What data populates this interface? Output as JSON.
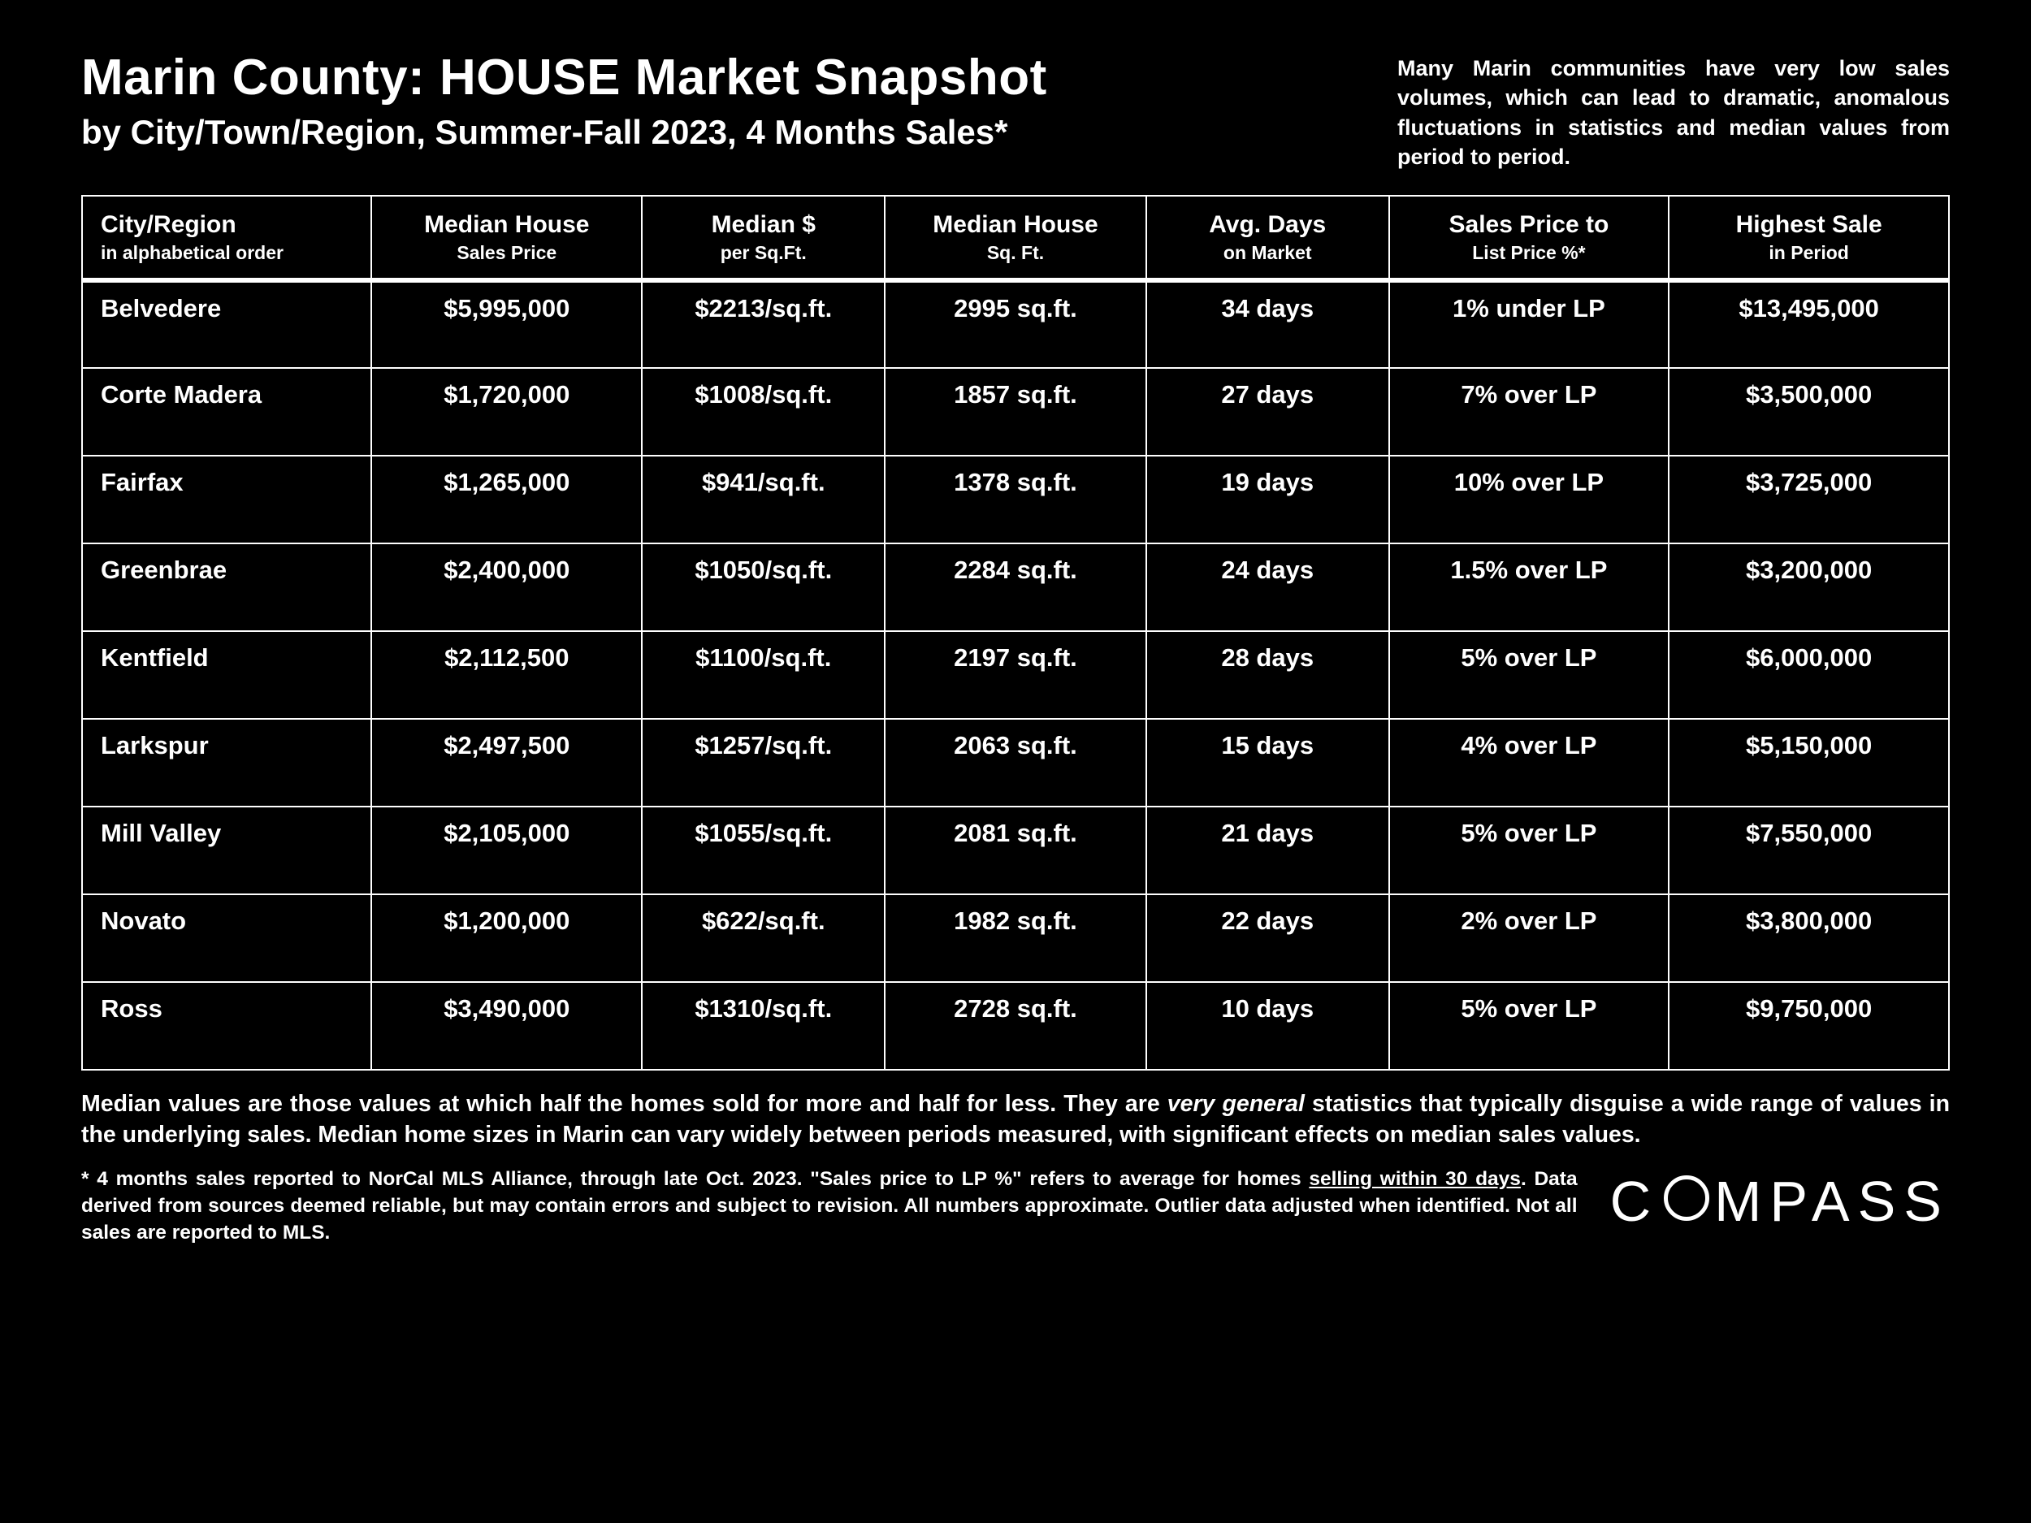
{
  "header": {
    "title": "Marin County: HOUSE Market Snapshot",
    "subtitle": "by City/Town/Region, Summer-Fall 2023, 4 Months Sales*",
    "note": "Many Marin communities have very low sales volumes, which can lead to dramatic, anomalous fluctuations in statistics and median values from period to period."
  },
  "columns": [
    {
      "line1": "City/Region",
      "line2": "in alphabetical order"
    },
    {
      "line1": "Median House",
      "line2": "Sales Price"
    },
    {
      "line1": "Median $",
      "line2": "per Sq.Ft."
    },
    {
      "line1": "Median House",
      "line2": "Sq. Ft."
    },
    {
      "line1": "Avg. Days",
      "line2": "on Market"
    },
    {
      "line1": "Sales Price to",
      "line2": "List Price %*"
    },
    {
      "line1": "Highest Sale",
      "line2": "in Period"
    }
  ],
  "rows": [
    {
      "city": "Belvedere",
      "price": "$5,995,000",
      "psf": "$2213/sq.ft.",
      "sqft": "2995 sq.ft.",
      "days": "34 days",
      "lp": "1% under LP",
      "high": "$13,495,000"
    },
    {
      "city": "Corte Madera",
      "price": "$1,720,000",
      "psf": "$1008/sq.ft.",
      "sqft": "1857 sq.ft.",
      "days": "27 days",
      "lp": "7% over LP",
      "high": "$3,500,000"
    },
    {
      "city": "Fairfax",
      "price": "$1,265,000",
      "psf": "$941/sq.ft.",
      "sqft": "1378 sq.ft.",
      "days": "19 days",
      "lp": "10% over LP",
      "high": "$3,725,000"
    },
    {
      "city": "Greenbrae",
      "price": "$2,400,000",
      "psf": "$1050/sq.ft.",
      "sqft": "2284 sq.ft.",
      "days": "24 days",
      "lp": "1.5% over LP",
      "high": "$3,200,000"
    },
    {
      "city": "Kentfield",
      "price": "$2,112,500",
      "psf": "$1100/sq.ft.",
      "sqft": "2197 sq.ft.",
      "days": "28 days",
      "lp": "5% over LP",
      "high": "$6,000,000"
    },
    {
      "city": "Larkspur",
      "price": "$2,497,500",
      "psf": "$1257/sq.ft.",
      "sqft": "2063 sq.ft.",
      "days": "15 days",
      "lp": "4% over LP",
      "high": "$5,150,000"
    },
    {
      "city": "Mill Valley",
      "price": "$2,105,000",
      "psf": "$1055/sq.ft.",
      "sqft": "2081 sq.ft.",
      "days": "21 days",
      "lp": "5% over LP",
      "high": "$7,550,000"
    },
    {
      "city": "Novato",
      "price": "$1,200,000",
      "psf": "$622/sq.ft.",
      "sqft": "1982 sq.ft.",
      "days": "22 days",
      "lp": "2% over LP",
      "high": "$3,800,000"
    },
    {
      "city": "Ross",
      "price": "$3,490,000",
      "psf": "$1310/sq.ft.",
      "sqft": "2728 sq.ft.",
      "days": "10 days",
      "lp": "5% over LP",
      "high": "$9,750,000"
    }
  ],
  "footnote1": {
    "pre": "Median values are those values at which half the homes sold for more and half for less. They are ",
    "emph": "very general",
    "post": " statistics that typically disguise a wide range of values in the underlying sales. Median home sizes in Marin can vary widely between periods measured, with significant effects on median sales values."
  },
  "footnote2": {
    "pre": "* 4 months sales reported to NorCal MLS Alliance, through late Oct. 2023. \"Sales price to LP %\" refers to average for homes ",
    "ul": "selling within 30 days",
    "post": ". Data derived from sources deemed reliable, but may contain errors and subject to revision. All numbers approximate. Outlier data adjusted when identified. Not all sales are reported to MLS."
  },
  "logo": {
    "pre": "C",
    "post": "MPASS"
  },
  "style": {
    "background_color": "#000000",
    "text_color": "#ffffff",
    "border_color": "#ffffff",
    "title_fontsize": 62,
    "subtitle_fontsize": 42,
    "header_note_fontsize": 27,
    "th_fontsize": 30,
    "th_sub_fontsize": 23,
    "td_fontsize": 31,
    "footnote1_fontsize": 28.5,
    "footnote2_fontsize": 24.5,
    "logo_fontsize": 70
  }
}
